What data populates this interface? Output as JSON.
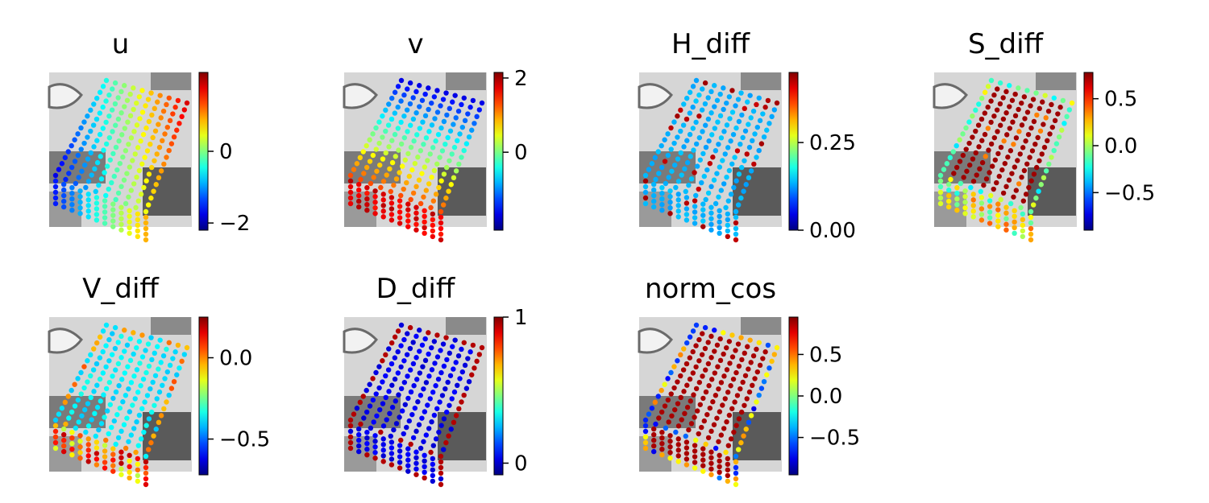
{
  "chart_data": [
    {
      "type": "scatter",
      "title": "u",
      "colormap": "jet",
      "clim": [
        -2.2,
        2.2
      ],
      "ticks": [
        -2,
        0
      ],
      "tick_labels": [
        "−2",
        "0"
      ],
      "pattern": "grad-x",
      "point_values_summary": "increasing left to right"
    },
    {
      "type": "scatter",
      "title": "v",
      "colormap": "jet",
      "clim": [
        -2.1,
        2.15
      ],
      "ticks": [
        0,
        2
      ],
      "tick_labels": [
        "0",
        "2"
      ],
      "pattern": "grad-y",
      "point_values_summary": "increasing top to bottom"
    },
    {
      "type": "scatter",
      "title": "H_diff",
      "colormap": "jet",
      "clim": [
        0.0,
        0.45
      ],
      "ticks": [
        0.0,
        0.25
      ],
      "tick_labels": [
        "0.00",
        "0.25"
      ],
      "pattern": "h",
      "point_values_summary": "mostly low, sparse high outliers on edges"
    },
    {
      "type": "scatter",
      "title": "S_diff",
      "colormap": "jet",
      "clim": [
        -0.9,
        0.78
      ],
      "ticks": [
        -0.5,
        0.0,
        0.5
      ],
      "tick_labels": [
        "−0.5",
        "0.0",
        "0.5"
      ],
      "pattern": "s",
      "point_values_summary": "high on top face, mid on border"
    },
    {
      "type": "scatter",
      "title": "V_diff",
      "colormap": "jet",
      "clim": [
        -0.72,
        0.25
      ],
      "ticks": [
        -0.5,
        0.0
      ],
      "tick_labels": [
        "−0.5",
        "0.0"
      ],
      "pattern": "vd",
      "point_values_summary": "low on top face, higher on front side"
    },
    {
      "type": "scatter",
      "title": "D_diff",
      "colormap": "jet",
      "clim": [
        -0.08,
        1.0
      ],
      "ticks": [
        0,
        1
      ],
      "tick_labels": [
        "0",
        "1"
      ],
      "pattern": "d",
      "point_values_summary": "mostly 0, edges near 1"
    },
    {
      "type": "scatter",
      "title": "norm_cos",
      "colormap": "jet",
      "clim": [
        -0.95,
        0.95
      ],
      "ticks": [
        -0.5,
        0.0,
        0.5
      ],
      "tick_labels": [
        "−0.5",
        "0.0",
        "0.5"
      ],
      "pattern": "n",
      "point_values_summary": "high on faces, mixed on edges"
    }
  ],
  "colors": {
    "background": "#ffffff",
    "photo_light": "#d6d6d6",
    "photo_dark": "#5a5a5a"
  },
  "colormap": "jet"
}
